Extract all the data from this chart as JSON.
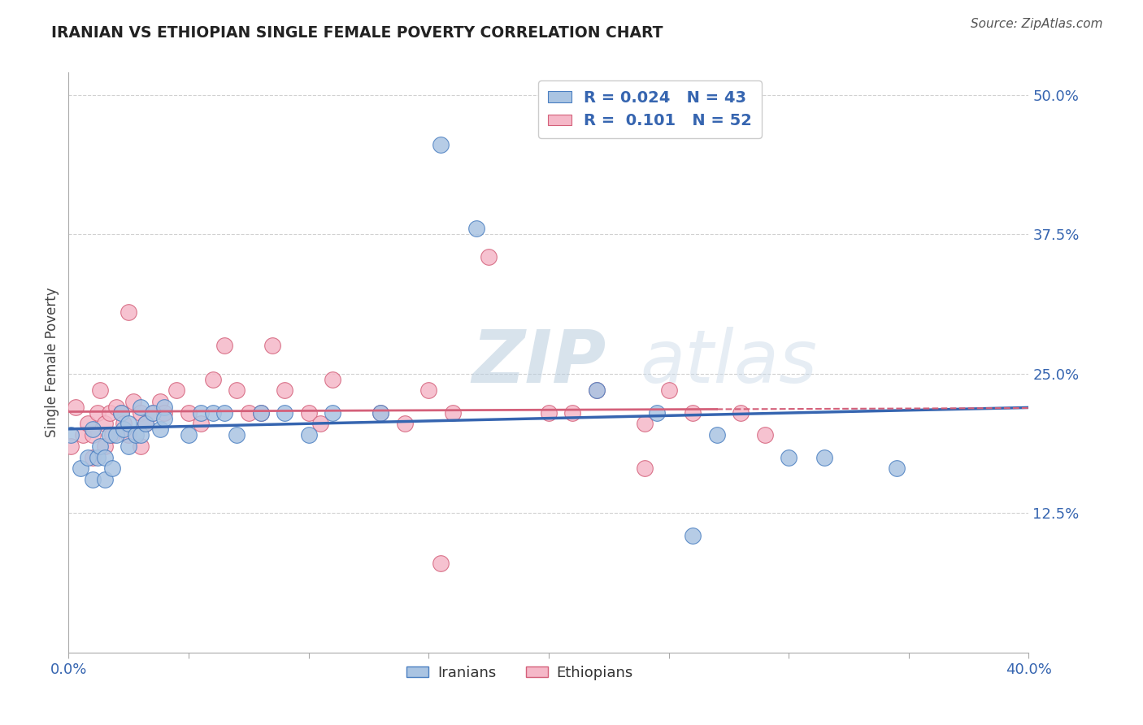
{
  "title": "IRANIAN VS ETHIOPIAN SINGLE FEMALE POVERTY CORRELATION CHART",
  "source": "Source: ZipAtlas.com",
  "ylabel_text": "Single Female Poverty",
  "xlim": [
    0.0,
    0.4
  ],
  "ylim": [
    0.0,
    0.52
  ],
  "xticks": [
    0.0,
    0.4
  ],
  "xtick_labels": [
    "0.0%",
    "40.0%"
  ],
  "yticks": [
    0.125,
    0.25,
    0.375,
    0.5
  ],
  "ytick_labels": [
    "12.5%",
    "25.0%",
    "37.5%",
    "50.0%"
  ],
  "grid_yticks": [
    0.125,
    0.25,
    0.375,
    0.5
  ],
  "background_color": "#ffffff",
  "iranians_R": "0.024",
  "iranians_N": "43",
  "ethiopians_R": "0.101",
  "ethiopians_N": "52",
  "iranians_color": "#aac4e2",
  "iranians_edge_color": "#4a7fc1",
  "ethiopians_color": "#f5b8c8",
  "ethiopians_edge_color": "#d4607a",
  "iranians_line_color": "#3665b0",
  "ethiopians_line_color": "#d4607a",
  "watermark_zip": "ZIP",
  "watermark_atlas": "atlas",
  "iranians_x": [
    0.001,
    0.005,
    0.008,
    0.01,
    0.01,
    0.012,
    0.013,
    0.015,
    0.015,
    0.017,
    0.018,
    0.02,
    0.022,
    0.023,
    0.025,
    0.025,
    0.028,
    0.03,
    0.03,
    0.032,
    0.035,
    0.038,
    0.04,
    0.04,
    0.05,
    0.055,
    0.06,
    0.065,
    0.07,
    0.08,
    0.09,
    0.1,
    0.11,
    0.13,
    0.155,
    0.17,
    0.22,
    0.245,
    0.27,
    0.3,
    0.315,
    0.345,
    0.26
  ],
  "iranians_y": [
    0.195,
    0.165,
    0.175,
    0.2,
    0.155,
    0.175,
    0.185,
    0.175,
    0.155,
    0.195,
    0.165,
    0.195,
    0.215,
    0.2,
    0.205,
    0.185,
    0.195,
    0.22,
    0.195,
    0.205,
    0.215,
    0.2,
    0.22,
    0.21,
    0.195,
    0.215,
    0.215,
    0.215,
    0.195,
    0.215,
    0.215,
    0.195,
    0.215,
    0.215,
    0.455,
    0.38,
    0.235,
    0.215,
    0.195,
    0.175,
    0.175,
    0.165,
    0.105
  ],
  "ethiopians_x": [
    0.001,
    0.003,
    0.006,
    0.008,
    0.01,
    0.01,
    0.012,
    0.013,
    0.015,
    0.015,
    0.017,
    0.018,
    0.02,
    0.022,
    0.023,
    0.025,
    0.025,
    0.027,
    0.03,
    0.03,
    0.032,
    0.035,
    0.038,
    0.04,
    0.045,
    0.05,
    0.055,
    0.06,
    0.065,
    0.07,
    0.075,
    0.08,
    0.085,
    0.09,
    0.1,
    0.105,
    0.11,
    0.13,
    0.14,
    0.15,
    0.16,
    0.175,
    0.2,
    0.21,
    0.22,
    0.24,
    0.25,
    0.26,
    0.28,
    0.29,
    0.24,
    0.155
  ],
  "ethiopians_y": [
    0.185,
    0.22,
    0.195,
    0.205,
    0.195,
    0.175,
    0.215,
    0.235,
    0.205,
    0.185,
    0.215,
    0.195,
    0.22,
    0.215,
    0.205,
    0.305,
    0.195,
    0.225,
    0.215,
    0.185,
    0.205,
    0.215,
    0.225,
    0.215,
    0.235,
    0.215,
    0.205,
    0.245,
    0.275,
    0.235,
    0.215,
    0.215,
    0.275,
    0.235,
    0.215,
    0.205,
    0.245,
    0.215,
    0.205,
    0.235,
    0.215,
    0.355,
    0.215,
    0.215,
    0.235,
    0.205,
    0.235,
    0.215,
    0.215,
    0.195,
    0.165,
    0.08
  ]
}
